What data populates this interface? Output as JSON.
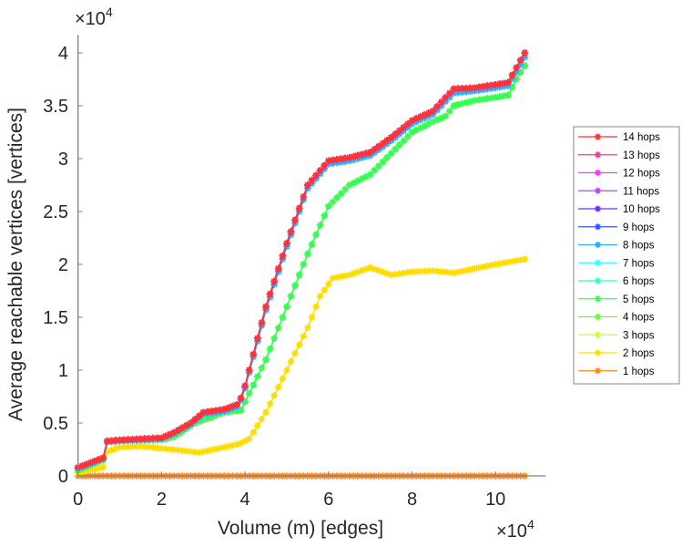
{
  "chart_data": {
    "type": "line",
    "title": "",
    "xlabel": "Volume (m) [edges]",
    "ylabel": "Average reachable vertices [vertices]",
    "x_multiplier": "×10",
    "x_multiplier_exp": "4",
    "y_multiplier": "×10",
    "y_multiplier_exp": "4",
    "xlim": [
      0,
      11.2
    ],
    "ylim": [
      0,
      4.17
    ],
    "xticks": [
      0,
      2,
      4,
      6,
      8,
      10
    ],
    "xtick_labels": [
      "0",
      "2",
      "4",
      "6",
      "8",
      "10"
    ],
    "yticks": [
      0,
      0.5,
      1,
      1.5,
      2,
      2.5,
      3,
      3.5,
      4
    ],
    "ytick_labels": [
      "0",
      "0.5",
      "1",
      "1.5",
      "2",
      "2.5",
      "3",
      "3.5",
      "4"
    ],
    "grid": false,
    "legend_position": "outside-right",
    "axis_color": "#808080",
    "series": [
      {
        "name": "14 hops",
        "color": "#ff3333",
        "curve": "blue"
      },
      {
        "name": "13 hops",
        "color": "#ff3399",
        "curve": "blue"
      },
      {
        "name": "12 hops",
        "color": "#ff33ff",
        "curve": "blue"
      },
      {
        "name": "11 hops",
        "color": "#bb44ff",
        "curve": "blue"
      },
      {
        "name": "10 hops",
        "color": "#6633ff",
        "curve": "blue"
      },
      {
        "name": "9 hops",
        "color": "#3355ff",
        "curve": "blue"
      },
      {
        "name": "8 hops",
        "color": "#33aaff",
        "curve": "cyan"
      },
      {
        "name": "7 hops",
        "color": "#33ffff",
        "curve": "cyan"
      },
      {
        "name": "6 hops",
        "color": "#33ffbb",
        "curve": "cyan"
      },
      {
        "name": "5 hops",
        "color": "#33ff55",
        "curve": "green"
      },
      {
        "name": "4 hops",
        "color": "#66ff33",
        "curve": "green"
      },
      {
        "name": "3 hops",
        "color": "#ccff33",
        "curve": "green"
      },
      {
        "name": "2 hops",
        "color": "#ffdd00",
        "curve": "yellow"
      },
      {
        "name": "1 hops",
        "color": "#ff8822",
        "curve": "orange"
      }
    ],
    "curves": {
      "blue": {
        "x": [
          0,
          0.6,
          0.7,
          1,
          2,
          2.3,
          2.7,
          3,
          3.5,
          3.85,
          4,
          4.5,
          5,
          5.5,
          6,
          6.5,
          7,
          7.5,
          8,
          8.5,
          9,
          9.5,
          10,
          10.3,
          10.5,
          10.7
        ],
        "y": [
          0.08,
          0.17,
          0.33,
          0.34,
          0.36,
          0.41,
          0.5,
          0.6,
          0.63,
          0.68,
          0.85,
          1.6,
          2.2,
          2.75,
          2.98,
          3.01,
          3.06,
          3.2,
          3.36,
          3.45,
          3.66,
          3.67,
          3.7,
          3.72,
          3.86,
          4.0
        ]
      },
      "cyan": {
        "x": [
          0,
          0.6,
          0.7,
          1,
          2,
          2.3,
          2.7,
          3,
          3.5,
          3.85,
          4,
          4.5,
          5,
          5.5,
          6,
          6.5,
          7,
          7.5,
          8,
          8.5,
          9,
          9.5,
          10,
          10.3,
          10.5,
          10.7
        ],
        "y": [
          0.07,
          0.16,
          0.32,
          0.33,
          0.35,
          0.4,
          0.49,
          0.58,
          0.61,
          0.66,
          0.83,
          1.57,
          2.17,
          2.72,
          2.95,
          2.98,
          3.03,
          3.17,
          3.33,
          3.42,
          3.62,
          3.64,
          3.67,
          3.69,
          3.82,
          3.96
        ]
      },
      "green": {
        "x": [
          0,
          0.6,
          0.7,
          1,
          2,
          2.3,
          2.8,
          3.5,
          3.9,
          4,
          4.5,
          5,
          5.5,
          6,
          6.5,
          7,
          7.5,
          8,
          8.5,
          8.8,
          9,
          9.5,
          10,
          10.3,
          10.5,
          10.7
        ],
        "y": [
          0.05,
          0.15,
          0.32,
          0.33,
          0.34,
          0.37,
          0.5,
          0.6,
          0.62,
          0.7,
          1.1,
          1.6,
          2.1,
          2.55,
          2.75,
          2.85,
          3.05,
          3.25,
          3.35,
          3.4,
          3.5,
          3.55,
          3.58,
          3.6,
          3.75,
          3.88
        ]
      },
      "yellow": {
        "x": [
          0,
          0.6,
          0.7,
          1,
          1.5,
          2,
          2.5,
          2.9,
          3.5,
          3.85,
          4.1,
          4.5,
          5,
          5.5,
          5.8,
          6.1,
          6.5,
          7,
          7.5,
          8,
          8.5,
          9,
          9.5,
          10,
          10.7
        ],
        "y": [
          0.03,
          0.08,
          0.23,
          0.27,
          0.28,
          0.26,
          0.24,
          0.22,
          0.27,
          0.3,
          0.35,
          0.6,
          1.0,
          1.4,
          1.7,
          1.87,
          1.9,
          1.97,
          1.9,
          1.93,
          1.94,
          1.92,
          1.96,
          2.0,
          2.05
        ]
      },
      "orange": {
        "x": [
          0,
          10.7
        ],
        "y": [
          0,
          0
        ]
      }
    }
  }
}
